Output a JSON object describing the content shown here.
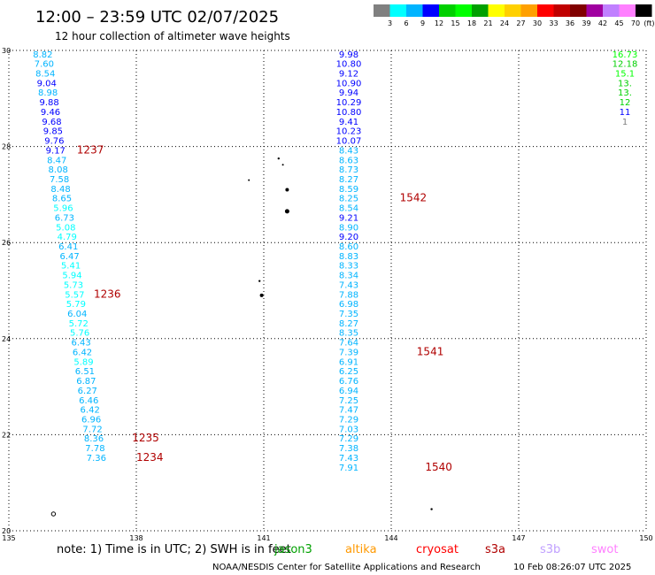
{
  "header": {
    "title": "12:00 – 23:59 UTC 02/07/2025",
    "subtitle": "12 hour collection of altimeter wave heights"
  },
  "legend": {
    "colors": [
      "#808080",
      "#00ffff",
      "#00b4ff",
      "#0000ff",
      "#00d000",
      "#00ff00",
      "#00a000",
      "#ffff00",
      "#ffd000",
      "#ffa000",
      "#ff0000",
      "#c00000",
      "#800000",
      "#a000a0",
      "#c080ff",
      "#ff80ff",
      "#000000"
    ],
    "ticks": [
      "3",
      "6",
      "9",
      "12",
      "15",
      "18",
      "21",
      "24",
      "27",
      "30",
      "33",
      "36",
      "39",
      "42",
      "45",
      "70"
    ],
    "unit": "(ft)"
  },
  "note": {
    "text": "note:  1) Time is in UTC;  2) SWH is in feet",
    "missions": [
      {
        "name": "jason3",
        "color": "#00a000"
      },
      {
        "name": "altika",
        "color": "#ff9900"
      },
      {
        "name": "cryosat",
        "color": "#ff0000"
      },
      {
        "name": "s3a",
        "color": "#b00000"
      },
      {
        "name": "s3b",
        "color": "#c0a0ff"
      },
      {
        "name": "swot",
        "color": "#ff80ff"
      }
    ]
  },
  "footer": {
    "credit": "NOAA/NESDIS Center for Satellite Applications and Research",
    "timestamp": "10 Feb 08:26:07 UTC 2025"
  },
  "chart_data": {
    "type": "scatter",
    "title": "12:00 – 23:59 UTC 02/07/2025",
    "subtitle": "12 hour collection of altimeter wave heights",
    "xlim": [
      135,
      150
    ],
    "ylim": [
      20,
      30
    ],
    "xticks": [
      135,
      138,
      141,
      144,
      147,
      150
    ],
    "yticks": [
      20,
      22,
      24,
      26,
      28,
      30
    ],
    "grid": true,
    "color_scale": {
      "unit": "ft",
      "thresholds": [
        3,
        6,
        9,
        12,
        15,
        18,
        21,
        24,
        27,
        30,
        33,
        36,
        39,
        42,
        45,
        70
      ]
    },
    "series": [
      {
        "name": "s3a",
        "points": [
          {
            "x": 135.8,
            "y": 29.93,
            "v": "8.82"
          },
          {
            "x": 135.83,
            "y": 29.73,
            "v": "7.60"
          },
          {
            "x": 135.86,
            "y": 29.53,
            "v": "8.54"
          },
          {
            "x": 135.89,
            "y": 29.33,
            "v": "9.04"
          },
          {
            "x": 135.92,
            "y": 29.13,
            "v": "8.98"
          },
          {
            "x": 135.95,
            "y": 28.93,
            "v": "9.88"
          },
          {
            "x": 135.98,
            "y": 28.73,
            "v": "9.46"
          },
          {
            "x": 136.01,
            "y": 28.53,
            "v": "9.68"
          },
          {
            "x": 136.04,
            "y": 28.33,
            "v": "9.85"
          },
          {
            "x": 136.07,
            "y": 28.13,
            "v": "9.76"
          },
          {
            "x": 136.1,
            "y": 27.93,
            "v": "9.17"
          },
          {
            "x": 136.13,
            "y": 27.73,
            "v": "8.47"
          },
          {
            "x": 136.16,
            "y": 27.53,
            "v": "8.08"
          },
          {
            "x": 136.19,
            "y": 27.33,
            "v": "7.58"
          },
          {
            "x": 136.22,
            "y": 27.13,
            "v": "8.48"
          },
          {
            "x": 136.25,
            "y": 26.93,
            "v": "8.65"
          },
          {
            "x": 136.28,
            "y": 26.73,
            "v": "5.96"
          },
          {
            "x": 136.31,
            "y": 26.53,
            "v": "6.73"
          },
          {
            "x": 136.34,
            "y": 26.33,
            "v": "5.08"
          },
          {
            "x": 136.37,
            "y": 26.13,
            "v": "4.79"
          },
          {
            "x": 136.4,
            "y": 25.93,
            "v": "6.41"
          },
          {
            "x": 136.43,
            "y": 25.73,
            "v": "6.47"
          },
          {
            "x": 136.46,
            "y": 25.53,
            "v": "5.41"
          },
          {
            "x": 136.49,
            "y": 25.33,
            "v": "5.94"
          },
          {
            "x": 136.52,
            "y": 25.13,
            "v": "5.73"
          },
          {
            "x": 136.55,
            "y": 24.93,
            "v": "5.57"
          },
          {
            "x": 136.58,
            "y": 24.73,
            "v": "5.79"
          },
          {
            "x": 136.61,
            "y": 24.53,
            "v": "6.04"
          },
          {
            "x": 136.64,
            "y": 24.33,
            "v": "5.72"
          },
          {
            "x": 136.67,
            "y": 24.13,
            "v": "5.76"
          },
          {
            "x": 136.7,
            "y": 23.93,
            "v": "6.43"
          },
          {
            "x": 136.73,
            "y": 23.73,
            "v": "6.42"
          },
          {
            "x": 136.76,
            "y": 23.53,
            "v": "5.89"
          },
          {
            "x": 136.79,
            "y": 23.33,
            "v": "6.51"
          },
          {
            "x": 136.82,
            "y": 23.13,
            "v": "6.87"
          },
          {
            "x": 136.85,
            "y": 22.93,
            "v": "6.27"
          },
          {
            "x": 136.88,
            "y": 22.73,
            "v": "6.46"
          },
          {
            "x": 136.91,
            "y": 22.53,
            "v": "6.42"
          },
          {
            "x": 136.94,
            "y": 22.33,
            "v": "6.96"
          },
          {
            "x": 136.97,
            "y": 22.13,
            "v": "7.72"
          },
          {
            "x": 137.0,
            "y": 21.93,
            "v": "8.36"
          },
          {
            "x": 137.03,
            "y": 21.73,
            "v": "7.78"
          },
          {
            "x": 137.06,
            "y": 21.53,
            "v": "7.36"
          },
          {
            "x": 143.0,
            "y": 29.93,
            "v": "9.98"
          },
          {
            "x": 143.0,
            "y": 29.73,
            "v": "10.80"
          },
          {
            "x": 143.0,
            "y": 29.53,
            "v": "9.12"
          },
          {
            "x": 143.0,
            "y": 29.33,
            "v": "10.90"
          },
          {
            "x": 143.0,
            "y": 29.13,
            "v": "9.94"
          },
          {
            "x": 143.0,
            "y": 28.93,
            "v": "10.29"
          },
          {
            "x": 143.0,
            "y": 28.73,
            "v": "10.80"
          },
          {
            "x": 143.0,
            "y": 28.53,
            "v": "9.41"
          },
          {
            "x": 143.0,
            "y": 28.33,
            "v": "10.23"
          },
          {
            "x": 143.0,
            "y": 28.13,
            "v": "10.07"
          },
          {
            "x": 143.0,
            "y": 27.93,
            "v": "8.43"
          },
          {
            "x": 143.0,
            "y": 27.73,
            "v": "8.63"
          },
          {
            "x": 143.0,
            "y": 27.53,
            "v": "8.73"
          },
          {
            "x": 143.0,
            "y": 27.33,
            "v": "8.27"
          },
          {
            "x": 143.0,
            "y": 27.13,
            "v": "8.59"
          },
          {
            "x": 143.0,
            "y": 26.93,
            "v": "8.25"
          },
          {
            "x": 143.0,
            "y": 26.73,
            "v": "8.54"
          },
          {
            "x": 143.0,
            "y": 26.53,
            "v": "9.21"
          },
          {
            "x": 143.0,
            "y": 26.33,
            "v": "8.90"
          },
          {
            "x": 143.0,
            "y": 26.13,
            "v": "9.20"
          },
          {
            "x": 143.0,
            "y": 25.93,
            "v": "8.60"
          },
          {
            "x": 143.0,
            "y": 25.73,
            "v": "8.83"
          },
          {
            "x": 143.0,
            "y": 25.53,
            "v": "8.33"
          },
          {
            "x": 143.0,
            "y": 25.33,
            "v": "8.34"
          },
          {
            "x": 143.0,
            "y": 25.13,
            "v": "7.43"
          },
          {
            "x": 143.0,
            "y": 24.93,
            "v": "7.88"
          },
          {
            "x": 143.0,
            "y": 24.73,
            "v": "6.98"
          },
          {
            "x": 143.0,
            "y": 24.53,
            "v": "7.35"
          },
          {
            "x": 143.0,
            "y": 24.33,
            "v": "8.27"
          },
          {
            "x": 143.0,
            "y": 24.13,
            "v": "8.35"
          },
          {
            "x": 143.0,
            "y": 23.93,
            "v": "7.64"
          },
          {
            "x": 143.0,
            "y": 23.73,
            "v": "7.39"
          },
          {
            "x": 143.0,
            "y": 23.53,
            "v": "6.91"
          },
          {
            "x": 143.0,
            "y": 23.33,
            "v": "6.25"
          },
          {
            "x": 143.0,
            "y": 23.13,
            "v": "6.76"
          },
          {
            "x": 143.0,
            "y": 22.93,
            "v": "6.94"
          },
          {
            "x": 143.0,
            "y": 22.73,
            "v": "7.25"
          },
          {
            "x": 143.0,
            "y": 22.53,
            "v": "7.47"
          },
          {
            "x": 143.0,
            "y": 22.33,
            "v": "7.29"
          },
          {
            "x": 143.0,
            "y": 22.13,
            "v": "7.03"
          },
          {
            "x": 143.0,
            "y": 21.93,
            "v": "7.29"
          },
          {
            "x": 143.0,
            "y": 21.73,
            "v": "7.38"
          },
          {
            "x": 143.0,
            "y": 21.53,
            "v": "7.43"
          },
          {
            "x": 143.0,
            "y": 21.33,
            "v": "7.91"
          },
          {
            "x": 149.5,
            "y": 29.93,
            "v": "16.73"
          },
          {
            "x": 149.5,
            "y": 29.73,
            "v": "12.18"
          },
          {
            "x": 149.5,
            "y": 29.53,
            "v": "15.1"
          },
          {
            "x": 149.5,
            "y": 29.33,
            "v": "13."
          },
          {
            "x": 149.5,
            "y": 29.13,
            "v": "13."
          },
          {
            "x": 149.5,
            "y": 28.93,
            "v": "12"
          },
          {
            "x": 149.5,
            "y": 28.73,
            "v": "11"
          },
          {
            "x": 149.5,
            "y": 28.53,
            "v": "1"
          }
        ]
      }
    ],
    "annotations": [
      {
        "text": "1237",
        "x": 136.6,
        "y": 27.93
      },
      {
        "text": "1236",
        "x": 137.0,
        "y": 24.93
      },
      {
        "text": "1235",
        "x": 137.9,
        "y": 21.93
      },
      {
        "text": "1234",
        "x": 138.0,
        "y": 21.53
      },
      {
        "text": "1542",
        "x": 144.2,
        "y": 26.93
      },
      {
        "text": "1541",
        "x": 144.6,
        "y": 23.73
      },
      {
        "text": "1540",
        "x": 144.8,
        "y": 21.33
      }
    ]
  }
}
